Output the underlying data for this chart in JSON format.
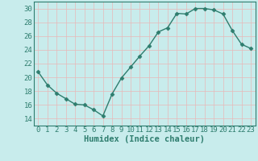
{
  "x": [
    0,
    1,
    2,
    3,
    4,
    5,
    6,
    7,
    8,
    9,
    10,
    11,
    12,
    13,
    14,
    15,
    16,
    17,
    18,
    19,
    20,
    21,
    22,
    23
  ],
  "y": [
    20.8,
    18.9,
    17.7,
    16.9,
    16.1,
    16.0,
    15.3,
    14.4,
    17.6,
    19.9,
    21.5,
    23.1,
    24.6,
    26.6,
    27.2,
    29.3,
    29.2,
    30.0,
    30.0,
    29.8,
    29.2,
    26.8,
    24.8,
    24.2
  ],
  "line_color": "#2e7d6e",
  "bg_color": "#c8ecec",
  "grid_color_major": "#e8c8c8",
  "grid_color_minor": "#c8ecec",
  "xlabel": "Humidex (Indice chaleur)",
  "ylim": [
    13,
    31
  ],
  "yticks": [
    14,
    16,
    18,
    20,
    22,
    24,
    26,
    28,
    30
  ],
  "xticks": [
    0,
    1,
    2,
    3,
    4,
    5,
    6,
    7,
    8,
    9,
    10,
    11,
    12,
    13,
    14,
    15,
    16,
    17,
    18,
    19,
    20,
    21,
    22,
    23
  ],
  "marker": "D",
  "marker_size": 2.5,
  "line_width": 1.0,
  "xlabel_fontsize": 7.5,
  "tick_fontsize": 6.5,
  "spine_color": "#2e7d6e"
}
